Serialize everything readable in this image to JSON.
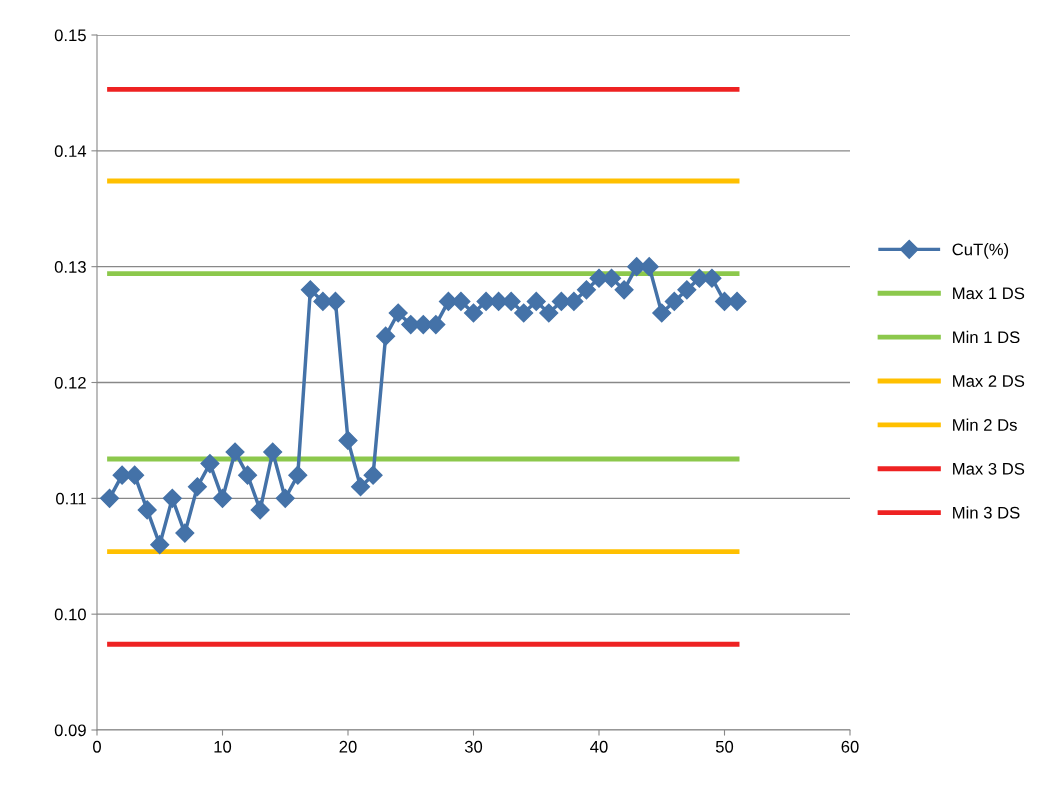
{
  "chart_data": {
    "type": "line",
    "xlim": [
      0,
      60
    ],
    "xticks": [
      0,
      10,
      20,
      30,
      40,
      50,
      60
    ],
    "ylim": [
      0.09,
      0.15
    ],
    "yticks": [
      {
        "value": 0.09,
        "label": "0.09"
      },
      {
        "value": 0.1,
        "label": "0.10"
      },
      {
        "value": 0.11,
        "label": "0.11"
      },
      {
        "value": 0.12,
        "label": "0.12"
      },
      {
        "value": 0.13,
        "label": "0.13"
      },
      {
        "value": 0.14,
        "label": "0.14"
      },
      {
        "value": 0.15,
        "label": "0.15"
      }
    ],
    "grid": "y",
    "legend": "right",
    "series": [
      {
        "name": "CuT(%)",
        "color": "#4472a8",
        "marker": "diamond",
        "x": [
          1,
          2,
          3,
          4,
          5,
          6,
          7,
          8,
          9,
          10,
          11,
          12,
          13,
          14,
          15,
          16,
          17,
          18,
          19,
          20,
          21,
          22,
          23,
          24,
          25,
          26,
          27,
          28,
          29,
          30,
          31,
          32,
          33,
          34,
          35,
          36,
          37,
          38,
          39,
          40,
          41,
          42,
          43,
          44,
          45,
          46,
          47,
          48,
          49,
          50,
          51
        ],
        "values": [
          0.11,
          0.112,
          0.112,
          0.109,
          0.106,
          0.11,
          0.107,
          0.111,
          0.113,
          0.11,
          0.114,
          0.112,
          0.109,
          0.114,
          0.11,
          0.112,
          0.128,
          0.127,
          0.127,
          0.115,
          0.111,
          0.112,
          0.124,
          0.126,
          0.125,
          0.125,
          0.125,
          0.127,
          0.127,
          0.126,
          0.127,
          0.127,
          0.127,
          0.126,
          0.127,
          0.126,
          0.127,
          0.127,
          0.128,
          0.129,
          0.129,
          0.128,
          0.13,
          0.13,
          0.126,
          0.127,
          0.128,
          0.129,
          0.129,
          0.127,
          0.127
        ]
      },
      {
        "name": "Max 1 DS",
        "color": "#8cc84c",
        "marker": "none",
        "x": [
          1,
          51
        ],
        "values": [
          0.1294,
          0.1294
        ]
      },
      {
        "name": "Min 1 DS",
        "color": "#8cc84c",
        "marker": "none",
        "x": [
          1,
          51
        ],
        "values": [
          0.1134,
          0.1134
        ]
      },
      {
        "name": "Max 2 DS",
        "color": "#ffc000",
        "marker": "none",
        "x": [
          1,
          51
        ],
        "values": [
          0.1374,
          0.1374
        ]
      },
      {
        "name": "Min 2 Ds",
        "color": "#ffc000",
        "marker": "none",
        "x": [
          1,
          51
        ],
        "values": [
          0.1054,
          0.1054
        ]
      },
      {
        "name": "Max 3 DS",
        "color": "#ee2222",
        "marker": "none",
        "x": [
          1,
          51
        ],
        "values": [
          0.1453,
          0.1453
        ]
      },
      {
        "name": "Min 3 DS",
        "color": "#ee2222",
        "marker": "none",
        "x": [
          1,
          51
        ],
        "values": [
          0.0974,
          0.0974
        ]
      }
    ]
  }
}
